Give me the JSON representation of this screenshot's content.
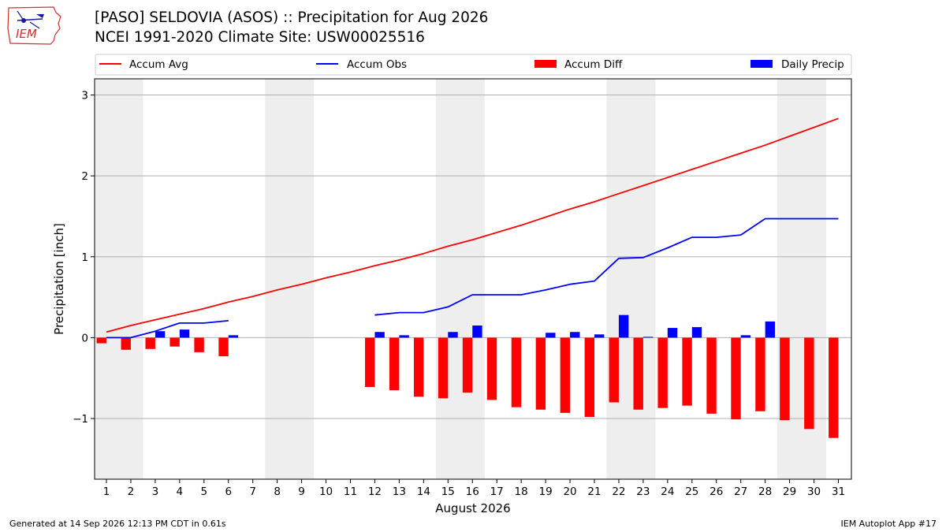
{
  "header": {
    "title_line1": "[PASO] SELDOVIA (ASOS) :: Precipitation for Aug 2026",
    "title_line2": "NCEI 1991-2020 Climate Site: USW00025516",
    "logo_text": "IEM"
  },
  "footer": {
    "generated": "Generated at 14 Sep 2026 12:13 PM CDT in 0.61s",
    "app": "IEM Autoplot App #17"
  },
  "chart_data": {
    "type": "bar",
    "xlabel": "August 2026",
    "ylabel": "Precipitation [inch]",
    "ylim": [
      -1.75,
      3.2
    ],
    "yticks": [
      -1,
      0,
      1,
      2,
      3
    ],
    "ytick_labels": [
      "−1",
      "0",
      "1",
      "2",
      "3"
    ],
    "grid": true,
    "legend_placement": "top",
    "x": [
      1,
      2,
      3,
      4,
      5,
      6,
      7,
      8,
      9,
      10,
      11,
      12,
      13,
      14,
      15,
      16,
      17,
      18,
      19,
      20,
      21,
      22,
      23,
      24,
      25,
      26,
      27,
      28,
      29,
      30,
      31
    ],
    "weekend_shading": [
      [
        1,
        2
      ],
      [
        8,
        9
      ],
      [
        15,
        16
      ],
      [
        22,
        23
      ],
      [
        29,
        30
      ]
    ],
    "series": [
      {
        "name": "Accum Avg",
        "kind": "line",
        "color": "#ff0000",
        "values": [
          0.07,
          0.15,
          0.22,
          0.29,
          0.36,
          0.44,
          0.51,
          0.59,
          0.66,
          0.74,
          0.81,
          0.89,
          0.96,
          1.04,
          1.13,
          1.21,
          1.3,
          1.39,
          1.49,
          1.59,
          1.68,
          1.78,
          1.88,
          1.98,
          2.08,
          2.18,
          2.28,
          2.38,
          2.49,
          2.6,
          2.71
        ]
      },
      {
        "name": "Accum Obs",
        "kind": "line",
        "color": "#0000ff",
        "values": [
          0.0,
          0.0,
          0.08,
          0.18,
          0.18,
          0.21,
          null,
          null,
          null,
          null,
          null,
          0.28,
          0.31,
          0.31,
          0.38,
          0.53,
          0.53,
          0.53,
          0.59,
          0.66,
          0.7,
          0.98,
          0.99,
          1.11,
          1.24,
          1.24,
          1.27,
          1.47,
          1.47,
          1.47,
          1.47
        ]
      },
      {
        "name": "Accum Diff",
        "kind": "bar",
        "color": "#ff0000",
        "values": [
          -0.07,
          -0.15,
          -0.14,
          -0.11,
          -0.18,
          -0.23,
          null,
          null,
          null,
          null,
          null,
          -0.61,
          -0.65,
          -0.73,
          -0.75,
          -0.68,
          -0.77,
          -0.86,
          -0.89,
          -0.93,
          -0.98,
          -0.8,
          -0.89,
          -0.87,
          -0.84,
          -0.94,
          -1.01,
          -0.91,
          -1.02,
          -1.13,
          -1.24
        ]
      },
      {
        "name": "Daily Precip",
        "kind": "bar",
        "color": "#0000ff",
        "values": [
          0.0,
          0.0,
          0.08,
          0.1,
          0.0,
          0.03,
          null,
          null,
          null,
          null,
          null,
          0.07,
          0.03,
          0.0,
          0.07,
          0.15,
          0.0,
          0.0,
          0.06,
          0.07,
          0.04,
          0.28,
          0.01,
          0.12,
          0.13,
          0.0,
          0.03,
          0.2,
          0.0,
          0.0,
          0.0
        ]
      }
    ]
  }
}
